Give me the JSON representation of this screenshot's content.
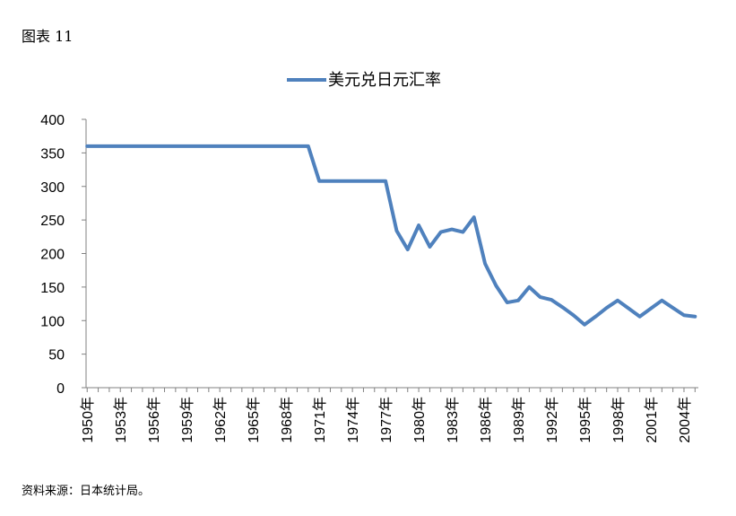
{
  "figure_label": "图表 11",
  "source_note": "资料来源：日本统计局。",
  "chart_data": {
    "type": "line",
    "legend_position": "top-center",
    "grid": false,
    "ylim": [
      0,
      400
    ],
    "yticks": [
      0,
      50,
      100,
      150,
      200,
      250,
      300,
      350,
      400
    ],
    "x_tick_labels": [
      "1950年",
      "1953年",
      "1956年",
      "1959年",
      "1962年",
      "1965年",
      "1968年",
      "1971年",
      "1974年",
      "1977年",
      "1980年",
      "1983年",
      "1986年",
      "1989年",
      "1992年",
      "1995年",
      "1998年",
      "2001年",
      "2004年"
    ],
    "x": [
      1950,
      1951,
      1952,
      1953,
      1954,
      1955,
      1956,
      1957,
      1958,
      1959,
      1960,
      1961,
      1962,
      1963,
      1964,
      1965,
      1966,
      1967,
      1968,
      1969,
      1970,
      1971,
      1972,
      1973,
      1974,
      1975,
      1976,
      1977,
      1978,
      1979,
      1980,
      1981,
      1982,
      1983,
      1984,
      1985,
      1986,
      1987,
      1988,
      1989,
      1990,
      1991,
      1992,
      1993,
      1994,
      1995,
      1996,
      1997,
      1998,
      1999,
      2000,
      2001,
      2002,
      2003,
      2004,
      2005
    ],
    "series": [
      {
        "name": "美元兑日元汇率",
        "color": "#4f81bd",
        "values": [
          360,
          360,
          360,
          360,
          360,
          360,
          360,
          360,
          360,
          360,
          360,
          360,
          360,
          360,
          360,
          360,
          360,
          360,
          360,
          360,
          360,
          308,
          308,
          308,
          308,
          308,
          308,
          308,
          234,
          206,
          242,
          210,
          232,
          236,
          232,
          254,
          185,
          152,
          127,
          130,
          150,
          135,
          131,
          120,
          108,
          94,
          106,
          119,
          130,
          118,
          106,
          118,
          130,
          119,
          108,
          106
        ]
      }
    ]
  }
}
